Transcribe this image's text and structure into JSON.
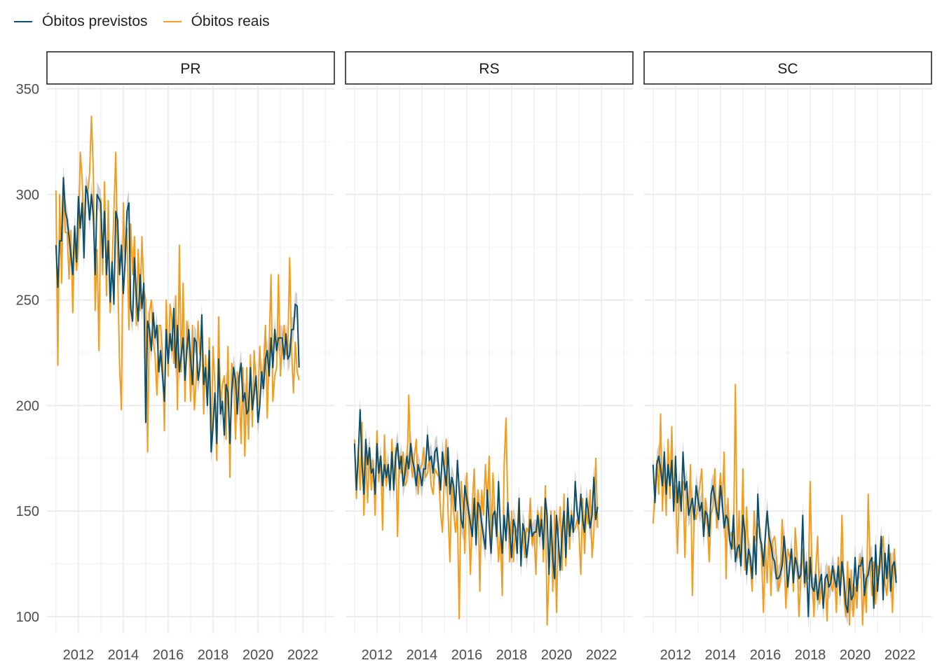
{
  "legend": {
    "items": [
      {
        "label": "Óbitos previstos",
        "color": "#0b4f6c"
      },
      {
        "label": "Óbitos reais",
        "color": "#f39c1e"
      }
    ]
  },
  "chart_data": {
    "type": "line",
    "y_ticks": [
      100,
      150,
      200,
      250,
      300,
      350
    ],
    "x_ticks": [
      "2012",
      "2014",
      "2016",
      "2018",
      "2020",
      "2022"
    ],
    "ylim": [
      92,
      352
    ],
    "xlim": [
      2010.6,
      2023.4
    ],
    "grid": true,
    "legend_position": "top-left",
    "colors": {
      "predicted": "#0b4f6c",
      "actual": "#f39c1e",
      "interval": "#bdbdbd"
    },
    "facets": [
      {
        "label": "PR",
        "x_start": 2011.0,
        "x_step": 0.0833,
        "series": [
          {
            "name": "Óbitos previstos",
            "values": [
              276,
              256,
              278,
              278,
              308,
              292,
              288,
              280,
              271,
              262,
              285,
              268,
              299,
              284,
              296,
              270,
              304,
              300,
              288,
              300,
              290,
              262,
              300,
              298,
              296,
              270,
              292,
              262,
              278,
              249,
              268,
              248,
              292,
              288,
              262,
              276,
              253,
              268,
              292,
              296,
              246,
              240,
              270,
              252,
              240,
              262,
              246,
              258,
              192,
              240,
              236,
              226,
              244,
              232,
              238,
              216,
              226,
              214,
              202,
              236,
              220,
              234,
              226,
              246,
              218,
              238,
              216,
              224,
              232,
              212,
              226,
              236,
              222,
              210,
              232,
              230,
              212,
              218,
              243,
              210,
              218,
              200,
              226,
              178,
              190,
              206,
              182,
              222,
              196,
              202,
              186,
              210,
              206,
              182,
              206,
              218,
              212,
              196,
              214,
              220,
              202,
              206,
              196,
              198,
              218,
              198,
              206,
              214,
              192,
              200,
              216,
              208,
              222,
              226,
              214,
              232,
              218,
              236,
              226,
              232,
              232,
              232,
              222,
              234,
              222,
              224,
              236,
              236,
              248,
              247,
              218
            ]
          },
          {
            "name": "Óbitos reais",
            "values": [
              302,
              219,
              300,
              258,
              300,
              282,
              282,
              260,
              283,
              244,
              282,
              264,
              274,
              320,
              308,
              282,
              304,
              300,
              310,
              337,
              310,
              245,
              274,
              226,
              298,
              262,
              306,
              252,
              297,
              244,
              266,
              292,
              320,
              264,
              220,
              198,
              296,
              268,
              284,
              236,
              286,
              262,
              280,
              238,
              274,
              245,
              280,
              255,
              250,
              178,
              244,
              250,
              230,
              224,
              205,
              238,
              238,
              224,
              188,
              250,
              214,
              248,
              240,
              220,
              252,
              198,
              276,
              216,
              258,
              202,
              240,
              232,
              202,
              238,
              198,
              212,
              240,
              224,
              234,
              196,
              224,
              202,
              232,
              180,
              228,
              210,
              174,
              242,
              200,
              210,
              214,
              184,
              228,
              166,
              220,
              216,
              184,
              216,
              208,
              182,
              218,
              176,
              218,
              184,
              224,
              190,
              226,
              210,
              200,
              228,
              208,
              218,
              238,
              194,
              228,
              262,
              202,
              214,
              218,
              262,
              214,
              228,
              238,
              224,
              228,
              270,
              226,
              206,
              230,
              216,
              212
            ]
          }
        ]
      },
      {
        "label": "RS",
        "x_start": 2011.0,
        "x_step": 0.0833,
        "series": [
          {
            "name": "Óbitos previstos",
            "values": [
              182,
              160,
              176,
              198,
              172,
              158,
              184,
              172,
              180,
              168,
              170,
              158,
              182,
              168,
              176,
              162,
              172,
              166,
              172,
              160,
              178,
              160,
              176,
              182,
              170,
              176,
              162,
              168,
              176,
              170,
              182,
              174,
              170,
              162,
              172,
              168,
              162,
              170,
              170,
              186,
              174,
              176,
              168,
              178,
              180,
              170,
              160,
              178,
              170,
              162,
              180,
              158,
              166,
              162,
              150,
              174,
              160,
              146,
              142,
              162,
              156,
              150,
              144,
              138,
              156,
              134,
              154,
              152,
              144,
              138,
              132,
              160,
              144,
              130,
              148,
              150,
              138,
              164,
              142,
              130,
              148,
              136,
              154,
              140,
              128,
              146,
              142,
              130,
              156,
              124,
              144,
              140,
              128,
              136,
              146,
              138,
              140,
              140,
              148,
              138,
              146,
              132,
              156,
              148,
              120,
              148,
              128,
              118,
              148,
              136,
              122,
              140,
              150,
              128,
              156,
              138,
              148,
              140,
              164,
              150,
              144,
              158,
              146,
              140,
              156,
              150,
              142,
              148,
              166,
              146,
              152
            ]
          },
          {
            "name": "Óbitos reais",
            "values": [
              184,
              156,
              180,
              160,
              192,
              148,
              176,
              154,
              178,
              160,
              174,
              148,
              188,
              164,
              176,
              141,
              186,
              162,
              172,
              160,
              184,
              162,
              180,
              138,
              176,
              168,
              178,
              162,
              164,
              205,
              174,
              166,
              176,
              184,
              158,
              170,
              172,
              180,
              166,
              168,
              176,
              162,
              158,
              170,
              168,
              166,
              150,
              140,
              166,
              184,
              150,
              126,
              164,
              150,
              140,
              150,
              99,
              164,
              152,
              130,
              168,
              146,
              120,
              154,
              170,
              138,
              160,
              112,
              160,
              148,
              172,
              152,
              176,
              136,
              168,
              150,
              148,
              126,
              140,
              110,
              172,
              194,
              150,
              126,
              150,
              126,
              142,
              140,
              156,
              130,
              140,
              128,
              142,
              140,
              156,
              134,
              140,
              120,
              150,
              142,
              152,
              126,
              162,
              96,
              120,
              150,
              112,
              150,
              102,
              140,
              152,
              122,
              158,
              124,
              150,
              132,
              150,
              140,
              142,
              146,
              140,
              120,
              156,
              130,
              150,
              144,
              160,
              128,
              140,
              175,
              142
            ]
          }
        ]
      },
      {
        "label": "SC",
        "x_start": 2011.0,
        "x_step": 0.0833,
        "series": [
          {
            "name": "Óbitos previstos",
            "values": [
              172,
              154,
              172,
              176,
              170,
              162,
              178,
              158,
              172,
              162,
              174,
              150,
              176,
              154,
              164,
              150,
              178,
              160,
              164,
              148,
              152,
              156,
              146,
              162,
              156,
              150,
              154,
              138,
              150,
              148,
              138,
              158,
              162,
              156,
              150,
              146,
              162,
              154,
              142,
              148,
              146,
              136,
              132,
              148,
              126,
              132,
              134,
              124,
              148,
              140,
              120,
              132,
              128,
              118,
              138,
              120,
              158,
              138,
              134,
              124,
              138,
              150,
              138,
              134,
              128,
              126,
              118,
              118,
              120,
              124,
              138,
              128,
              114,
              124,
              132,
              116,
              128,
              124,
              118,
              120,
              148,
              116,
              126,
              100,
              128,
              114,
              112,
              120,
              108,
              116,
              120,
              104,
              118,
              120,
              114,
              116,
              124,
              118,
              114,
              124,
              110,
              126,
              118,
              106,
              102,
              118,
              108,
              110,
              128,
              112,
              124,
              124,
              128,
              110,
              118,
              120,
              126,
              128,
              104,
              134,
              112,
              124,
              138,
              108,
              130,
              118,
              134,
              112,
              124,
              126,
              116
            ]
          },
          {
            "name": "Óbitos reais",
            "values": [
              144,
              160,
              174,
              158,
              196,
              150,
              176,
              148,
              184,
              156,
              190,
              150,
              162,
              130,
              158,
              154,
              164,
              128,
              160,
              148,
              172,
              110,
              150,
              146,
              154,
              162,
              170,
              142,
              156,
              144,
              126,
              148,
              152,
              170,
              142,
              156,
              168,
              152,
              178,
              118,
              156,
              138,
              140,
              132,
              210,
              128,
              150,
              124,
              170,
              122,
              152,
              130,
              124,
              112,
              150,
              136,
              144,
              142,
              128,
              102,
              134,
              116,
              142,
              110,
              136,
              138,
              128,
              112,
              118,
              146,
              128,
              104,
              132,
              128,
              132,
              112,
              142,
              128,
              100,
              118,
              132,
              114,
              118,
              118,
              164,
              120,
              100,
              122,
              138,
              106,
              116,
              104,
              118,
              98,
              124,
              116,
              112,
              122,
              102,
              128,
              114,
              148,
              110,
              100,
              126,
              96,
              122,
              100,
              114,
              104,
              124,
              128,
              96,
              120,
              102,
              158,
              126,
              110,
              126,
              106,
              124,
              120,
              130,
              138,
              116,
              110,
              122,
              130,
              102,
              132,
              118
            ]
          }
        ]
      }
    ]
  }
}
